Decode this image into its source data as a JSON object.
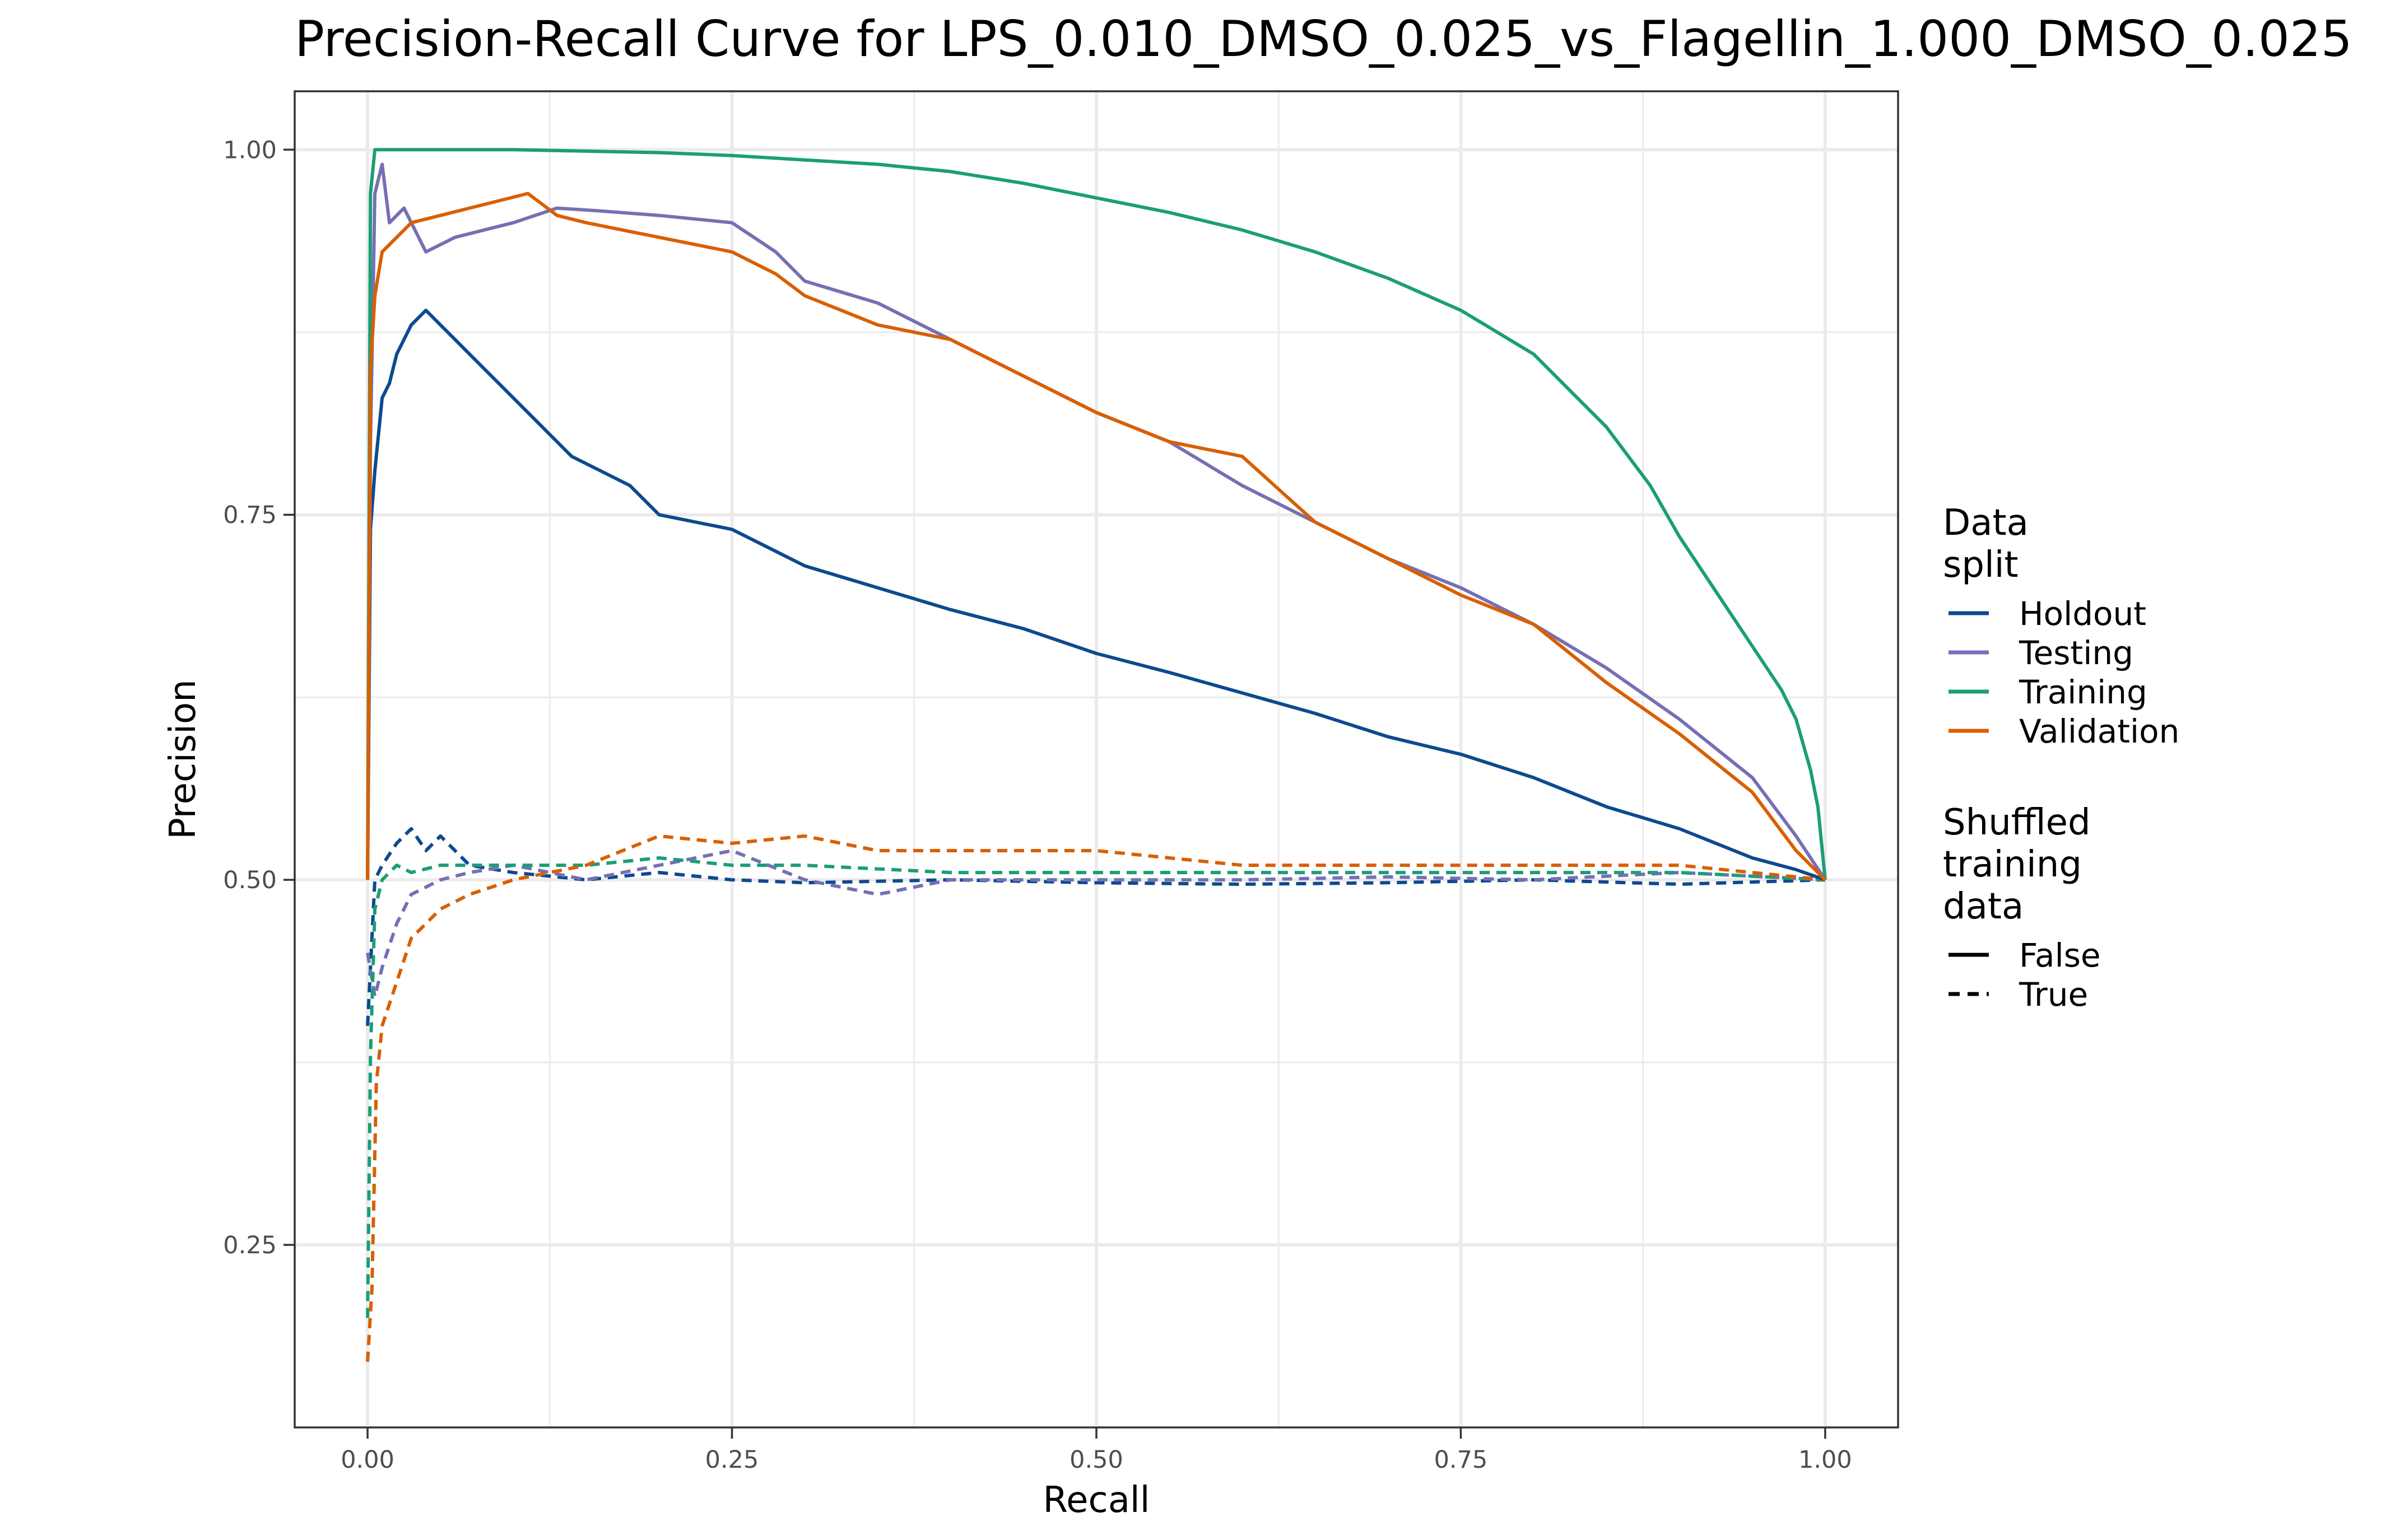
{
  "chart_data": {
    "type": "line",
    "title": "Precision-Recall Curve for LPS_0.010_DMSO_0.025_vs_Flagellin_1.000_DMSO_0.025",
    "xlabel": "Recall",
    "ylabel": "Precision",
    "xlim": [
      -0.05,
      1.05
    ],
    "ylim": [
      0.125,
      1.04
    ],
    "x_ticks": [
      0,
      0.25,
      0.5,
      0.75,
      1.0
    ],
    "x_tick_labels": [
      "0.00",
      "0.25",
      "0.50",
      "0.75",
      "1.00"
    ],
    "y_ticks": [
      0.25,
      0.5,
      0.75,
      1.0
    ],
    "y_tick_labels": [
      "0.25",
      "0.50",
      "0.75",
      "1.00"
    ],
    "grid": true,
    "legend": {
      "position": "right",
      "color_title": "Data\nsplit",
      "linetype_title": "Shuffled\ntraining\ndata",
      "linetype_entries": [
        {
          "label": "False",
          "dash": "solid"
        },
        {
          "label": "True",
          "dash": "dashed"
        }
      ]
    },
    "series": [
      {
        "name": "Holdout",
        "color": "#0d4a8f",
        "shuffled": "False",
        "points": [
          [
            0.0,
            0.5
          ],
          [
            0.002,
            0.74
          ],
          [
            0.005,
            0.78
          ],
          [
            0.01,
            0.83
          ],
          [
            0.015,
            0.84
          ],
          [
            0.02,
            0.86
          ],
          [
            0.03,
            0.88
          ],
          [
            0.04,
            0.89
          ],
          [
            0.05,
            0.88
          ],
          [
            0.06,
            0.87
          ],
          [
            0.08,
            0.85
          ],
          [
            0.1,
            0.83
          ],
          [
            0.12,
            0.81
          ],
          [
            0.14,
            0.79
          ],
          [
            0.16,
            0.78
          ],
          [
            0.18,
            0.77
          ],
          [
            0.2,
            0.75
          ],
          [
            0.25,
            0.74
          ],
          [
            0.3,
            0.715
          ],
          [
            0.35,
            0.7
          ],
          [
            0.4,
            0.685
          ],
          [
            0.45,
            0.672
          ],
          [
            0.5,
            0.655
          ],
          [
            0.55,
            0.642
          ],
          [
            0.6,
            0.628
          ],
          [
            0.65,
            0.614
          ],
          [
            0.7,
            0.598
          ],
          [
            0.75,
            0.586
          ],
          [
            0.8,
            0.57
          ],
          [
            0.85,
            0.55
          ],
          [
            0.9,
            0.535
          ],
          [
            0.95,
            0.515
          ],
          [
            0.98,
            0.507
          ],
          [
            1.0,
            0.5
          ]
        ]
      },
      {
        "name": "Testing",
        "color": "#7570b3",
        "shuffled": "False",
        "points": [
          [
            0.0,
            0.5
          ],
          [
            0.002,
            0.8
          ],
          [
            0.005,
            0.97
          ],
          [
            0.01,
            0.99
          ],
          [
            0.015,
            0.95
          ],
          [
            0.025,
            0.96
          ],
          [
            0.04,
            0.93
          ],
          [
            0.06,
            0.94
          ],
          [
            0.08,
            0.945
          ],
          [
            0.1,
            0.95
          ],
          [
            0.13,
            0.96
          ],
          [
            0.16,
            0.958
          ],
          [
            0.2,
            0.955
          ],
          [
            0.25,
            0.95
          ],
          [
            0.28,
            0.93
          ],
          [
            0.3,
            0.91
          ],
          [
            0.35,
            0.895
          ],
          [
            0.4,
            0.87
          ],
          [
            0.45,
            0.845
          ],
          [
            0.5,
            0.82
          ],
          [
            0.55,
            0.8
          ],
          [
            0.6,
            0.77
          ],
          [
            0.65,
            0.745
          ],
          [
            0.7,
            0.72
          ],
          [
            0.75,
            0.7
          ],
          [
            0.8,
            0.675
          ],
          [
            0.85,
            0.645
          ],
          [
            0.9,
            0.61
          ],
          [
            0.95,
            0.57
          ],
          [
            0.98,
            0.53
          ],
          [
            1.0,
            0.5
          ]
        ]
      },
      {
        "name": "Training",
        "color": "#1b9e77",
        "shuffled": "False",
        "points": [
          [
            0.0,
            0.5
          ],
          [
            0.002,
            0.97
          ],
          [
            0.005,
            1.0
          ],
          [
            0.05,
            1.0
          ],
          [
            0.1,
            1.0
          ],
          [
            0.15,
            0.999
          ],
          [
            0.2,
            0.998
          ],
          [
            0.25,
            0.996
          ],
          [
            0.3,
            0.993
          ],
          [
            0.35,
            0.99
          ],
          [
            0.4,
            0.985
          ],
          [
            0.45,
            0.977
          ],
          [
            0.5,
            0.967
          ],
          [
            0.55,
            0.957
          ],
          [
            0.6,
            0.945
          ],
          [
            0.65,
            0.93
          ],
          [
            0.7,
            0.912
          ],
          [
            0.75,
            0.89
          ],
          [
            0.8,
            0.86
          ],
          [
            0.85,
            0.81
          ],
          [
            0.88,
            0.77
          ],
          [
            0.9,
            0.735
          ],
          [
            0.93,
            0.69
          ],
          [
            0.95,
            0.66
          ],
          [
            0.97,
            0.63
          ],
          [
            0.98,
            0.61
          ],
          [
            0.99,
            0.575
          ],
          [
            0.995,
            0.55
          ],
          [
            1.0,
            0.5
          ]
        ]
      },
      {
        "name": "Validation",
        "color": "#d95f02",
        "shuffled": "False",
        "points": [
          [
            0.0,
            0.5
          ],
          [
            0.002,
            0.85
          ],
          [
            0.005,
            0.9
          ],
          [
            0.01,
            0.93
          ],
          [
            0.02,
            0.94
          ],
          [
            0.03,
            0.95
          ],
          [
            0.05,
            0.955
          ],
          [
            0.07,
            0.96
          ],
          [
            0.09,
            0.965
          ],
          [
            0.11,
            0.97
          ],
          [
            0.13,
            0.955
          ],
          [
            0.15,
            0.95
          ],
          [
            0.2,
            0.94
          ],
          [
            0.25,
            0.93
          ],
          [
            0.28,
            0.915
          ],
          [
            0.3,
            0.9
          ],
          [
            0.35,
            0.88
          ],
          [
            0.4,
            0.87
          ],
          [
            0.45,
            0.845
          ],
          [
            0.5,
            0.82
          ],
          [
            0.55,
            0.8
          ],
          [
            0.6,
            0.79
          ],
          [
            0.65,
            0.745
          ],
          [
            0.7,
            0.72
          ],
          [
            0.75,
            0.695
          ],
          [
            0.8,
            0.675
          ],
          [
            0.85,
            0.635
          ],
          [
            0.9,
            0.6
          ],
          [
            0.95,
            0.56
          ],
          [
            0.98,
            0.52
          ],
          [
            1.0,
            0.5
          ]
        ]
      },
      {
        "name": "Holdout",
        "color": "#0d4a8f",
        "shuffled": "True",
        "points": [
          [
            0.0,
            0.4
          ],
          [
            0.005,
            0.5
          ],
          [
            0.01,
            0.51
          ],
          [
            0.02,
            0.525
          ],
          [
            0.03,
            0.535
          ],
          [
            0.04,
            0.52
          ],
          [
            0.05,
            0.53
          ],
          [
            0.07,
            0.51
          ],
          [
            0.1,
            0.505
          ],
          [
            0.15,
            0.5
          ],
          [
            0.2,
            0.505
          ],
          [
            0.25,
            0.5
          ],
          [
            0.3,
            0.498
          ],
          [
            0.4,
            0.5
          ],
          [
            0.5,
            0.498
          ],
          [
            0.6,
            0.497
          ],
          [
            0.7,
            0.498
          ],
          [
            0.8,
            0.5
          ],
          [
            0.9,
            0.497
          ],
          [
            1.0,
            0.5
          ]
        ]
      },
      {
        "name": "Testing",
        "color": "#7570b3",
        "shuffled": "True",
        "points": [
          [
            0.0,
            0.45
          ],
          [
            0.005,
            0.42
          ],
          [
            0.01,
            0.44
          ],
          [
            0.02,
            0.47
          ],
          [
            0.03,
            0.49
          ],
          [
            0.05,
            0.5
          ],
          [
            0.07,
            0.505
          ],
          [
            0.1,
            0.51
          ],
          [
            0.15,
            0.5
          ],
          [
            0.2,
            0.51
          ],
          [
            0.25,
            0.52
          ],
          [
            0.3,
            0.5
          ],
          [
            0.35,
            0.49
          ],
          [
            0.4,
            0.5
          ],
          [
            0.5,
            0.5
          ],
          [
            0.6,
            0.5
          ],
          [
            0.7,
            0.502
          ],
          [
            0.8,
            0.5
          ],
          [
            0.9,
            0.505
          ],
          [
            1.0,
            0.5
          ]
        ]
      },
      {
        "name": "Training",
        "color": "#1b9e77",
        "shuffled": "True",
        "points": [
          [
            0.0,
            0.2
          ],
          [
            0.002,
            0.38
          ],
          [
            0.005,
            0.48
          ],
          [
            0.01,
            0.5
          ],
          [
            0.02,
            0.51
          ],
          [
            0.03,
            0.505
          ],
          [
            0.05,
            0.51
          ],
          [
            0.1,
            0.51
          ],
          [
            0.15,
            0.51
          ],
          [
            0.2,
            0.515
          ],
          [
            0.25,
            0.51
          ],
          [
            0.3,
            0.51
          ],
          [
            0.4,
            0.505
          ],
          [
            0.5,
            0.505
          ],
          [
            0.6,
            0.505
          ],
          [
            0.7,
            0.505
          ],
          [
            0.8,
            0.505
          ],
          [
            0.9,
            0.505
          ],
          [
            1.0,
            0.5
          ]
        ]
      },
      {
        "name": "Validation",
        "color": "#d95f02",
        "shuffled": "True",
        "points": [
          [
            0.0,
            0.17
          ],
          [
            0.003,
            0.22
          ],
          [
            0.006,
            0.36
          ],
          [
            0.01,
            0.4
          ],
          [
            0.02,
            0.43
          ],
          [
            0.03,
            0.46
          ],
          [
            0.05,
            0.48
          ],
          [
            0.07,
            0.49
          ],
          [
            0.1,
            0.5
          ],
          [
            0.15,
            0.51
          ],
          [
            0.2,
            0.53
          ],
          [
            0.25,
            0.525
          ],
          [
            0.3,
            0.53
          ],
          [
            0.35,
            0.52
          ],
          [
            0.4,
            0.52
          ],
          [
            0.45,
            0.52
          ],
          [
            0.5,
            0.52
          ],
          [
            0.55,
            0.515
          ],
          [
            0.6,
            0.51
          ],
          [
            0.7,
            0.51
          ],
          [
            0.8,
            0.51
          ],
          [
            0.9,
            0.51
          ],
          [
            1.0,
            0.5
          ]
        ]
      }
    ]
  }
}
